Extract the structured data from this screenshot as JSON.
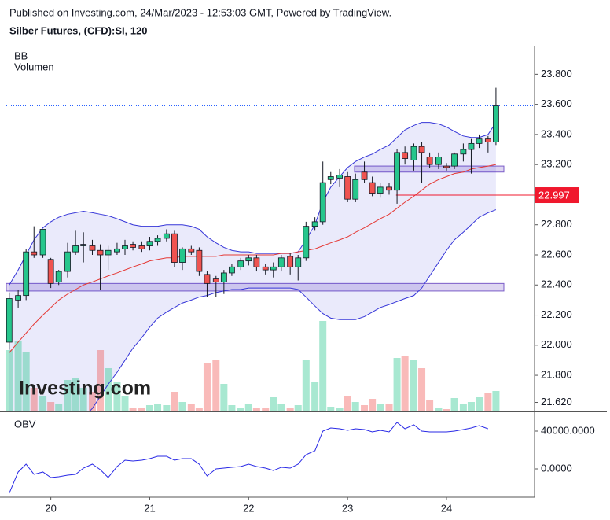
{
  "chart_data": [
    {
      "type": "candlestick",
      "subtitle": "Published on Investing.com, 24/Mar/2023 - 12:53:03 GMT, Powered by TradingView.",
      "title": "Silber Futures, (CFD):SI, 120",
      "indicator_labels": [
        "BB",
        "Volumen"
      ],
      "watermark": "Investing.com",
      "x": [
        19.58,
        19.67,
        19.75,
        19.83,
        19.92,
        20,
        20.08,
        20.17,
        20.25,
        20.33,
        20.42,
        20.5,
        20.58,
        20.67,
        20.75,
        20.83,
        20.92,
        21,
        21.08,
        21.17,
        21.25,
        21.33,
        21.42,
        21.5,
        21.58,
        21.67,
        21.75,
        21.83,
        21.92,
        22,
        22.08,
        22.17,
        22.25,
        22.33,
        22.42,
        22.5,
        22.58,
        22.67,
        22.75,
        22.83,
        22.92,
        23,
        23.08,
        23.17,
        23.25,
        23.33,
        23.42,
        23.5,
        23.58,
        23.67,
        23.75,
        23.83,
        23.92,
        24,
        24.08,
        24.17,
        24.25,
        24.33,
        24.42,
        24.5
      ],
      "open": [
        22.02,
        22.3,
        22.33,
        22.62,
        22.6,
        22.57,
        22.42,
        22.49,
        22.62,
        22.66,
        22.66,
        22.63,
        22.6,
        22.62,
        22.64,
        22.67,
        22.66,
        22.66,
        22.69,
        22.71,
        22.74,
        22.55,
        22.64,
        22.63,
        22.47,
        22.44,
        22.42,
        22.48,
        22.52,
        22.56,
        22.58,
        22.52,
        22.5,
        22.52,
        22.59,
        22.52,
        22.58,
        22.79,
        22.82,
        23.1,
        23.11,
        23.12,
        22.97,
        23.15,
        23.08,
        23.01,
        23.05,
        23.03,
        23.28,
        23.23,
        23.32,
        23.25,
        23.2,
        23.19,
        23.19,
        23.27,
        23.3,
        23.34,
        23.37,
        23.35
      ],
      "high": [
        22.35,
        22.37,
        22.64,
        22.79,
        22.77,
        22.58,
        22.5,
        22.68,
        22.76,
        22.75,
        22.7,
        22.67,
        22.66,
        22.68,
        22.7,
        22.69,
        22.69,
        22.72,
        22.73,
        22.77,
        22.76,
        22.65,
        22.66,
        22.65,
        22.49,
        22.46,
        22.5,
        22.54,
        22.58,
        22.6,
        22.6,
        22.54,
        22.55,
        22.6,
        22.61,
        22.6,
        22.82,
        22.85,
        23.22,
        23.15,
        23.17,
        23.15,
        23.14,
        23.22,
        23.12,
        23.08,
        23.08,
        23.3,
        23.32,
        23.34,
        23.35,
        23.28,
        23.28,
        23.21,
        23.28,
        23.34,
        23.37,
        23.4,
        23.39,
        23.71
      ],
      "low": [
        21.97,
        22.25,
        22.3,
        22.58,
        22.58,
        22.38,
        22.4,
        22.45,
        22.6,
        22.55,
        22.6,
        22.37,
        22.5,
        22.6,
        22.6,
        22.63,
        22.62,
        22.63,
        22.66,
        22.69,
        22.52,
        22.5,
        22.6,
        22.46,
        22.32,
        22.32,
        22.34,
        22.46,
        22.5,
        22.53,
        22.49,
        22.47,
        22.45,
        22.49,
        22.47,
        22.43,
        22.56,
        22.76,
        22.8,
        23.07,
        23.05,
        22.95,
        22.95,
        23.08,
        22.99,
        22.98,
        23.0,
        22.94,
        23.2,
        23.16,
        23.08,
        23.18,
        23.17,
        23.16,
        23.17,
        23.22,
        23.14,
        23.31,
        23.28,
        23.33
      ],
      "close": [
        22.31,
        22.33,
        22.62,
        22.6,
        22.77,
        22.41,
        22.49,
        22.62,
        22.66,
        22.67,
        22.63,
        22.6,
        22.63,
        22.64,
        22.66,
        22.65,
        22.64,
        22.69,
        22.71,
        22.74,
        22.55,
        22.64,
        22.62,
        22.49,
        22.41,
        22.42,
        22.48,
        22.52,
        22.56,
        22.58,
        22.52,
        22.5,
        22.52,
        22.58,
        22.52,
        22.58,
        22.79,
        22.82,
        23.08,
        23.12,
        23.13,
        22.97,
        23.1,
        23.1,
        23.01,
        23.05,
        23.03,
        23.28,
        23.24,
        23.32,
        23.28,
        23.2,
        23.25,
        23.18,
        23.27,
        23.3,
        23.34,
        23.37,
        23.35,
        23.59
      ],
      "volume": [
        78,
        90,
        75,
        30,
        20,
        12,
        10,
        40,
        42,
        30,
        25,
        78,
        55,
        38,
        20,
        5,
        4,
        8,
        10,
        8,
        25,
        12,
        10,
        5,
        62,
        66,
        35,
        8,
        4,
        10,
        5,
        5,
        18,
        10,
        5,
        8,
        65,
        38,
        115,
        6,
        4,
        20,
        12,
        8,
        16,
        10,
        10,
        68,
        71,
        66,
        55,
        15,
        5,
        3,
        17,
        10,
        12,
        18,
        24,
        26
      ],
      "bb_upper": [
        22.4,
        22.5,
        22.6,
        22.7,
        22.78,
        22.82,
        22.85,
        22.87,
        22.88,
        22.89,
        22.88,
        22.87,
        22.86,
        22.84,
        22.82,
        22.8,
        22.79,
        22.79,
        22.79,
        22.8,
        22.8,
        22.8,
        22.79,
        22.77,
        22.72,
        22.68,
        22.65,
        22.63,
        22.62,
        22.62,
        22.61,
        22.61,
        22.61,
        22.61,
        22.61,
        22.62,
        22.7,
        22.8,
        22.95,
        23.05,
        23.12,
        23.18,
        23.22,
        23.25,
        23.27,
        23.3,
        23.33,
        23.38,
        23.43,
        23.46,
        23.48,
        23.48,
        23.47,
        23.45,
        23.42,
        23.39,
        23.38,
        23.38,
        23.4,
        23.48
      ],
      "bb_middle": [
        21.95,
        22.02,
        22.08,
        22.14,
        22.2,
        22.25,
        22.3,
        22.34,
        22.37,
        22.4,
        22.42,
        22.44,
        22.46,
        22.48,
        22.5,
        22.52,
        22.54,
        22.56,
        22.57,
        22.58,
        22.58,
        22.59,
        22.59,
        22.59,
        22.59,
        22.59,
        22.6,
        22.6,
        22.6,
        22.6,
        22.6,
        22.6,
        22.6,
        22.61,
        22.61,
        22.62,
        22.63,
        22.64,
        22.66,
        22.68,
        22.7,
        22.72,
        22.75,
        22.78,
        22.81,
        22.84,
        22.87,
        22.91,
        22.95,
        22.99,
        23.03,
        23.07,
        23.1,
        23.12,
        23.14,
        23.15,
        23.17,
        23.18,
        23.19,
        23.2
      ],
      "bb_lower": [
        20.9,
        20.95,
        21.0,
        21.05,
        21.1,
        21.2,
        21.28,
        21.36,
        21.44,
        21.52,
        21.58,
        21.66,
        21.74,
        21.82,
        21.9,
        21.98,
        22.05,
        22.12,
        22.18,
        22.22,
        22.25,
        22.28,
        22.3,
        22.32,
        22.33,
        22.35,
        22.36,
        22.37,
        22.37,
        22.38,
        22.38,
        22.38,
        22.38,
        22.38,
        22.38,
        22.37,
        22.32,
        22.26,
        22.21,
        22.18,
        22.17,
        22.17,
        22.17,
        22.19,
        22.22,
        22.25,
        22.27,
        22.29,
        22.31,
        22.33,
        22.38,
        22.46,
        22.55,
        22.63,
        22.7,
        22.75,
        22.8,
        22.85,
        22.88,
        22.9
      ],
      "zones": [
        {
          "from": 22.36,
          "to": 22.41,
          "start": 19.55,
          "end": 24.58
        },
        {
          "from": 23.15,
          "to": 23.19,
          "start": 23.07,
          "end": 24.58
        }
      ],
      "level": {
        "value": 22.997,
        "start": 23.49
      },
      "up_color": "#26c68c",
      "down_color": "#ef5350",
      "band_color": "#3535d8",
      "middle_color": "#e53935",
      "zone_color": "#7a5cc8",
      "level_color": "#f0182d",
      "last_color": "#2962ff",
      "xlim": [
        19.55,
        24.89
      ],
      "ylim": [
        21.56,
        23.99
      ],
      "yticks": [
        {
          "value": 21.62,
          "label": "21.620"
        },
        {
          "value": 21.8,
          "label": "21.800"
        },
        {
          "value": 22.0,
          "label": "22.000"
        },
        {
          "value": 22.2,
          "label": "22.200"
        },
        {
          "value": 22.4,
          "label": "22.400"
        },
        {
          "value": 22.6,
          "label": "22.600"
        },
        {
          "value": 22.8,
          "label": "22.800"
        },
        {
          "value": 23.2,
          "label": "23.200"
        },
        {
          "value": 23.4,
          "label": "23.400"
        },
        {
          "value": 23.6,
          "label": "23.600"
        },
        {
          "value": 23.8,
          "label": "23.800"
        }
      ]
    },
    {
      "type": "line",
      "title": "OBV",
      "x": [
        19.58,
        19.67,
        19.75,
        19.83,
        19.92,
        20,
        20.08,
        20.17,
        20.25,
        20.33,
        20.42,
        20.5,
        20.58,
        20.67,
        20.75,
        20.83,
        20.92,
        21,
        21.08,
        21.17,
        21.25,
        21.33,
        21.42,
        21.5,
        21.58,
        21.67,
        21.75,
        21.83,
        21.92,
        22,
        22.08,
        22.17,
        22.25,
        22.33,
        22.42,
        22.5,
        22.58,
        22.67,
        22.75,
        22.83,
        22.92,
        23,
        23.08,
        23.17,
        23.25,
        23.33,
        23.42,
        23.5,
        23.58,
        23.67,
        23.75,
        23.83,
        23.92,
        24,
        24.08,
        24.17,
        24.25,
        24.33,
        24.42,
        24.5
      ],
      "values": [
        -25800,
        -3300,
        5000,
        -5800,
        -3300,
        -9200,
        -8300,
        -6700,
        -5800,
        800,
        5000,
        -800,
        -9200,
        2500,
        9200,
        8300,
        9200,
        10800,
        13300,
        13300,
        9200,
        10800,
        10800,
        5000,
        -7500,
        0,
        800,
        1700,
        2500,
        5000,
        2500,
        800,
        -1700,
        1700,
        800,
        5000,
        15000,
        19200,
        40000,
        43300,
        42500,
        40800,
        42500,
        41700,
        39200,
        40800,
        39200,
        49200,
        42500,
        46700,
        40000,
        39200,
        39200,
        39200,
        40000,
        41700,
        43300,
        45800,
        42500,
        null
      ],
      "color": "#2a2ae6",
      "xlim": [
        19.55,
        24.89
      ],
      "ylim": [
        -30000,
        55000
      ],
      "xticks": [
        20,
        21,
        22,
        23,
        24
      ],
      "yticks": [
        {
          "value": 40000,
          "label": "40000.0000"
        },
        {
          "value": 0,
          "label": "0.0000"
        }
      ]
    }
  ]
}
